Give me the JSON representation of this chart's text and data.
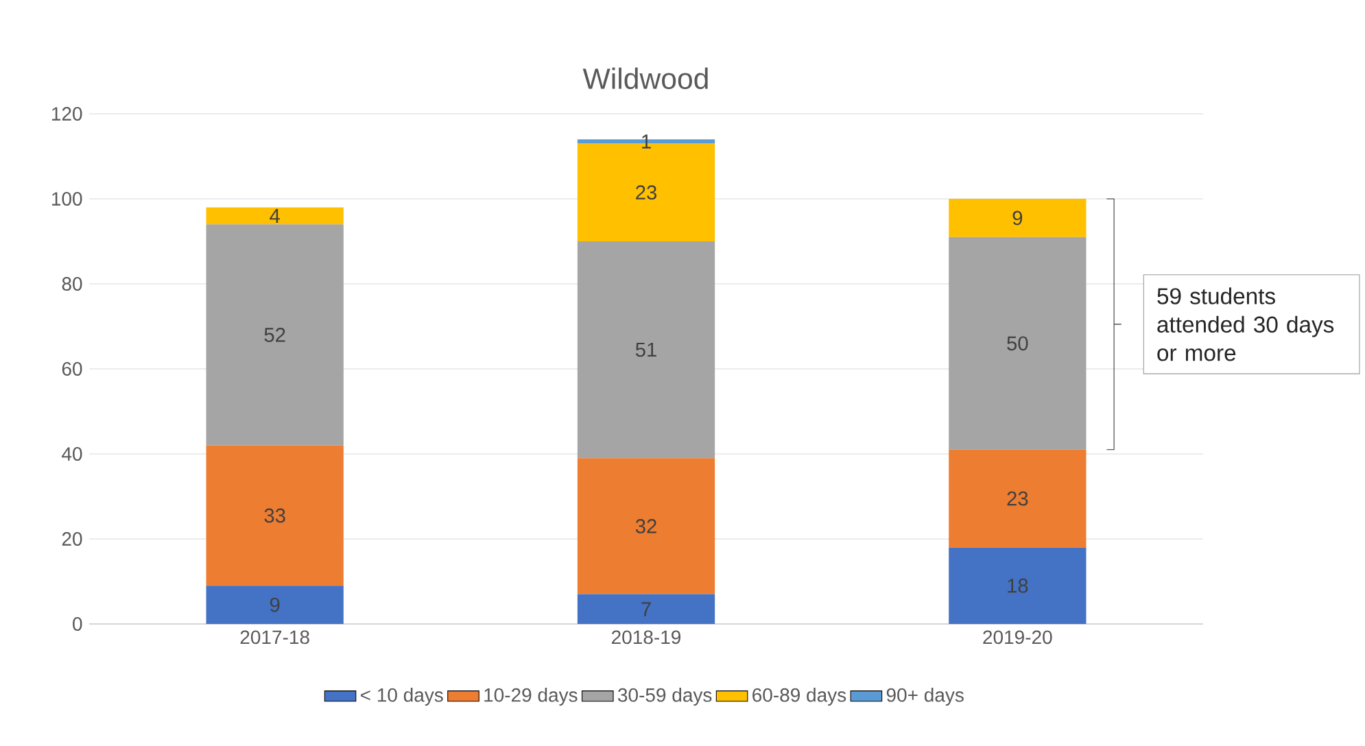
{
  "chart_data": {
    "type": "bar",
    "title": "Wildwood",
    "stacked": true,
    "categories": [
      "2017-18",
      "2018-19",
      "2019-20"
    ],
    "series": [
      {
        "name": "< 10 days",
        "color": "#4472c4",
        "values": [
          9,
          7,
          18
        ],
        "value_labels": [
          "9",
          "7",
          "18"
        ]
      },
      {
        "name": "10-29 days",
        "color": "#ed7d31",
        "values": [
          33,
          32,
          23
        ],
        "value_labels": [
          "33",
          "32",
          "23"
        ]
      },
      {
        "name": "30-59 days",
        "color": "#a5a5a5",
        "values": [
          52,
          51,
          50
        ],
        "value_labels": [
          "52",
          "51",
          "50"
        ]
      },
      {
        "name": "60-89 days",
        "color": "#ffc000",
        "values": [
          4,
          23,
          9
        ],
        "value_labels": [
          "4",
          "23",
          "9"
        ]
      },
      {
        "name": "90+ days",
        "color": "#5b9bd5",
        "values": [
          0,
          1,
          0
        ],
        "value_labels": [
          null,
          "1",
          null
        ]
      }
    ],
    "ylim": [
      0,
      120
    ],
    "yticks": [
      0,
      20,
      40,
      60,
      80,
      100,
      120
    ],
    "grid": "y",
    "legend": "bottom",
    "annotations": [
      "59 students attended 30 days or more"
    ]
  }
}
